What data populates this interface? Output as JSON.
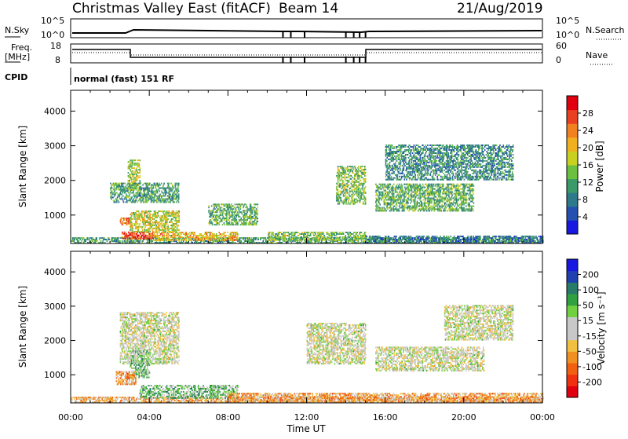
{
  "header": {
    "title": "Christmas Valley East (fitACF)",
    "beam": "Beam 14",
    "date": "21/Aug/2019"
  },
  "status_rows": {
    "nsky_label": "N.Sky",
    "nsky_ticks": [
      "10^5",
      "10^0"
    ],
    "nsearch_label": "N.Search",
    "nsearch_ticks": [
      "10^5",
      "10^0"
    ],
    "freq_label_line1": "Freq.",
    "freq_label_line2": "[MHz]",
    "freq_ticks": [
      "18",
      "8"
    ],
    "nave_label": "Nave",
    "nave_ticks": [
      "60",
      "0"
    ],
    "cpid_label": "CPID",
    "cpid_text": "normal (fast) 151 RF"
  },
  "chart_data": [
    {
      "type": "heatmap",
      "title": "",
      "xlabel": "",
      "ylabel": "Slant Range [km]",
      "x_ticks": [
        "00:00",
        "04:00",
        "08:00",
        "12:00",
        "16:00",
        "20:00",
        "00:00"
      ],
      "y_ticks": [
        "1000",
        "2000",
        "3000",
        "4000"
      ],
      "ylim": [
        180,
        4600
      ],
      "colorbar": {
        "label": "Power [dB]",
        "ticks": [
          "4",
          "8",
          "12",
          "16",
          "20",
          "24",
          "28"
        ],
        "range": [
          0,
          32
        ],
        "colors": [
          "#1818e0",
          "#2450b0",
          "#2e7a8a",
          "#3a9a6a",
          "#6cc040",
          "#c8d020",
          "#f0b020",
          "#f08020",
          "#e84020",
          "#e00010"
        ]
      },
      "regions": [
        {
          "t0": 0.0,
          "t1": 24.0,
          "r0": 180,
          "r1": 350,
          "level": 0.35
        },
        {
          "t0": 2.6,
          "t1": 4.2,
          "r0": 300,
          "r1": 520,
          "level": 0.85
        },
        {
          "t0": 4.2,
          "t1": 8.5,
          "r0": 250,
          "r1": 500,
          "level": 0.65
        },
        {
          "t0": 2.5,
          "t1": 3.0,
          "r0": 700,
          "r1": 900,
          "level": 0.75
        },
        {
          "t0": 3.0,
          "t1": 5.5,
          "r0": 500,
          "r1": 1100,
          "level": 0.55
        },
        {
          "t0": 2.9,
          "t1": 3.5,
          "r0": 1700,
          "r1": 2600,
          "level": 0.5
        },
        {
          "t0": 2.0,
          "t1": 5.5,
          "r0": 1350,
          "r1": 1900,
          "level": 0.35
        },
        {
          "t0": 7.0,
          "t1": 9.5,
          "r0": 700,
          "r1": 1300,
          "level": 0.4
        },
        {
          "t0": 10.0,
          "t1": 15.0,
          "r0": 250,
          "r1": 500,
          "level": 0.45
        },
        {
          "t0": 13.5,
          "t1": 15.0,
          "r0": 1300,
          "r1": 2400,
          "level": 0.45
        },
        {
          "t0": 15.5,
          "t1": 20.5,
          "r0": 1100,
          "r1": 1900,
          "level": 0.4
        },
        {
          "t0": 16.0,
          "t1": 22.5,
          "r0": 2000,
          "r1": 3000,
          "level": 0.3
        },
        {
          "t0": 15.0,
          "t1": 24.0,
          "r0": 180,
          "r1": 400,
          "level": 0.25
        }
      ]
    },
    {
      "type": "heatmap",
      "title": "",
      "xlabel": "Time UT",
      "ylabel": "Slant Range [km]",
      "x_ticks": [
        "00:00",
        "04:00",
        "08:00",
        "12:00",
        "16:00",
        "20:00",
        "00:00"
      ],
      "y_ticks": [
        "1000",
        "2000",
        "3000",
        "4000"
      ],
      "ylim": [
        180,
        4600
      ],
      "colorbar": {
        "label": "Velocity [m s⁻¹]",
        "ticks": [
          "200",
          "100",
          "50",
          "15",
          "-15",
          "-50",
          "-100",
          "-200"
        ],
        "range": [
          -250,
          250
        ],
        "colors": [
          "#e00010",
          "#f03010",
          "#f06010",
          "#f09020",
          "#f0c040",
          "#c8c8c8",
          "#c8c8c8",
          "#70d040",
          "#30a040",
          "#2a7a6a",
          "#2040b0",
          "#1818e0"
        ]
      },
      "regions": [
        {
          "t0": 0.0,
          "t1": 24.0,
          "r0": 180,
          "r1": 330,
          "level": -0.3
        },
        {
          "t0": 3.5,
          "t1": 8.5,
          "r0": 300,
          "r1": 700,
          "level": 0.3
        },
        {
          "t0": 2.5,
          "t1": 5.5,
          "r0": 1300,
          "r1": 2800,
          "level": 0.0
        },
        {
          "t0": 3.0,
          "t1": 4.0,
          "r0": 900,
          "r1": 1700,
          "level": 0.25
        },
        {
          "t0": 2.3,
          "t1": 3.3,
          "r0": 700,
          "r1": 1100,
          "level": -0.4
        },
        {
          "t0": 12.0,
          "t1": 15.0,
          "r0": 1300,
          "r1": 2500,
          "level": 0.0
        },
        {
          "t0": 15.5,
          "t1": 21.0,
          "r0": 1100,
          "r1": 1800,
          "level": 0.0
        },
        {
          "t0": 19.0,
          "t1": 22.5,
          "r0": 2000,
          "r1": 3000,
          "level": 0.0
        },
        {
          "t0": 8.0,
          "t1": 24.0,
          "r0": 200,
          "r1": 450,
          "level": -0.35
        }
      ]
    }
  ]
}
